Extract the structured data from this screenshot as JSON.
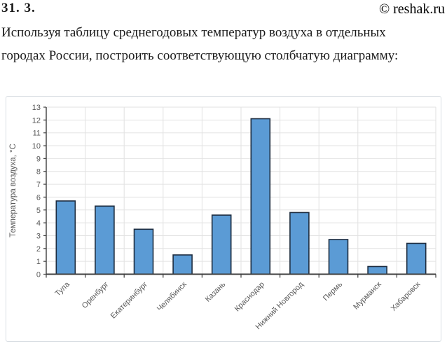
{
  "header": {
    "problem_number": "31. 3.",
    "site_credit": "© reshak.ru"
  },
  "task": {
    "line1": "Используя таблицу среднегодовых температур воздуха в отдельных",
    "line2": "городах России, построить соответствующую столбчатую диаграмму:"
  },
  "chart_data": {
    "type": "bar",
    "title": "",
    "categories": [
      "Тула",
      "Оренбург",
      "Екатеринбург",
      "Челябинск",
      "Казань",
      "Краснодар",
      "Нижний Новгород",
      "Пермь",
      "Мурманск",
      "Хабаровск"
    ],
    "values": [
      5.7,
      5.3,
      3.5,
      1.5,
      4.6,
      12.1,
      4.8,
      2.7,
      0.6,
      2.4
    ],
    "xlabel": "",
    "ylabel": "Температура воздуха, °C",
    "ylim": [
      0,
      13
    ],
    "ytick_step": 1,
    "grid": true,
    "legend": "none",
    "colors": {
      "bar_fill": "#5b9bd5",
      "bar_border": "#1e2d40",
      "gridline": "#e2e2e2",
      "axis": "#3f3f3f",
      "tick_label": "#595959",
      "axis_title": "#595959",
      "chart_border": "#d9dee3"
    }
  }
}
